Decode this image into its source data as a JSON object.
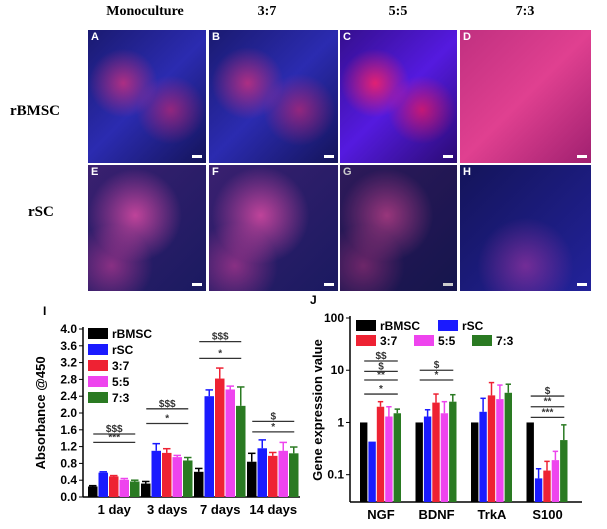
{
  "columns": [
    "Monoculture",
    "3:7",
    "5:5",
    "7:3"
  ],
  "rows": [
    "rBMSC",
    "rSC"
  ],
  "panels": [
    "A",
    "B",
    "C",
    "D",
    "E",
    "F",
    "G",
    "H"
  ],
  "colors": {
    "rBMSC": "#000000",
    "rSC": "#1a1aff",
    "3:7": "#ee2233",
    "5:5": "#ee44ee",
    "7:3": "#2a7a22"
  },
  "chart_data": [
    {
      "panel": "I",
      "type": "bar",
      "ylabel": "Absorbance @450",
      "xlabel": "",
      "ylim": [
        0,
        4.0
      ],
      "yticks": [
        "0.0",
        "0.4",
        "0.8",
        "1.2",
        "1.6",
        "2.0",
        "2.4",
        "2.8",
        "3.2",
        "3.6",
        "4.0"
      ],
      "categories": [
        "1 day",
        "3 days",
        "7 days",
        "14 days"
      ],
      "legend": "top-left",
      "series": [
        {
          "name": "rBMSC",
          "values": [
            0.25,
            0.32,
            0.6,
            0.84
          ],
          "errors": [
            0.02,
            0.05,
            0.08,
            0.2
          ]
        },
        {
          "name": "rSC",
          "values": [
            0.58,
            1.1,
            2.4,
            1.16
          ],
          "errors": [
            0.02,
            0.17,
            0.15,
            0.2
          ]
        },
        {
          "name": "3:7",
          "values": [
            0.49,
            1.05,
            2.82,
            0.98
          ],
          "errors": [
            0.02,
            0.1,
            0.25,
            0.08
          ]
        },
        {
          "name": "5:5",
          "values": [
            0.41,
            0.95,
            2.56,
            1.1
          ],
          "errors": [
            0.03,
            0.04,
            0.08,
            0.2
          ]
        },
        {
          "name": "7:3",
          "values": [
            0.37,
            0.87,
            2.17,
            1.04
          ],
          "errors": [
            0.03,
            0.07,
            0.45,
            0.15
          ]
        }
      ],
      "annotations": [
        {
          "group": 0,
          "label": "$$$",
          "y": 1.5
        },
        {
          "group": 0,
          "label": "***",
          "y": 1.3
        },
        {
          "group": 1,
          "label": "$$$",
          "y": 2.1
        },
        {
          "group": 1,
          "label": "*",
          "y": 1.75
        },
        {
          "group": 2,
          "label": "$$$",
          "y": 3.7
        },
        {
          "group": 2,
          "label": "*",
          "y": 3.3
        },
        {
          "group": 3,
          "label": "$",
          "y": 1.8
        },
        {
          "group": 3,
          "label": "*",
          "y": 1.55
        }
      ]
    },
    {
      "panel": "J",
      "type": "bar",
      "scale": "log",
      "ylabel": "Gene expression value",
      "xlabel": "",
      "ylim": [
        0.03,
        100
      ],
      "yticks": [
        "0.1",
        "1",
        "10",
        "100"
      ],
      "categories": [
        "NGF",
        "BDNF",
        "TrkA",
        "S100"
      ],
      "legend": "top",
      "series": [
        {
          "name": "rBMSC",
          "values": [
            1,
            1,
            1,
            1
          ],
          "upper": [
            1,
            1,
            1,
            1
          ]
        },
        {
          "name": "rSC",
          "values": [
            0.43,
            1.3,
            1.6,
            0.085
          ],
          "upper": [
            0.43,
            1.75,
            2.9,
            0.13
          ]
        },
        {
          "name": "3:7",
          "values": [
            2.0,
            2.4,
            3.3,
            0.12
          ],
          "upper": [
            2.5,
            3.5,
            5.8,
            0.18
          ]
        },
        {
          "name": "5:5",
          "values": [
            1.3,
            1.5,
            2.8,
            0.19
          ],
          "upper": [
            2.0,
            2.5,
            5.2,
            0.28
          ]
        },
        {
          "name": "7:3",
          "values": [
            1.5,
            2.5,
            3.7,
            0.46
          ],
          "upper": [
            1.8,
            3.4,
            5.4,
            0.9
          ]
        }
      ],
      "annotations": [
        {
          "group": 0,
          "label": "$$",
          "y": 15
        },
        {
          "group": 0,
          "label": "$",
          "y": 9.5
        },
        {
          "group": 0,
          "label": "**",
          "y": 6.5
        },
        {
          "group": 0,
          "label": "*",
          "y": 3.5
        },
        {
          "group": 1,
          "label": "$",
          "y": 10
        },
        {
          "group": 1,
          "label": "*",
          "y": 6.5
        },
        {
          "group": 3,
          "label": "$",
          "y": 3.2
        },
        {
          "group": 3,
          "label": "**",
          "y": 2.0
        },
        {
          "group": 3,
          "label": "***",
          "y": 1.25
        }
      ]
    }
  ]
}
